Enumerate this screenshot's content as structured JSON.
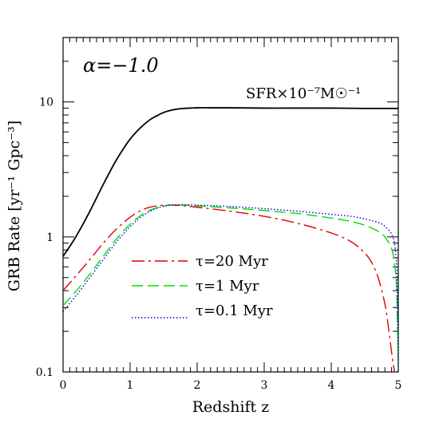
{
  "chart_data": {
    "type": "line",
    "xlabel": "Redshift z",
    "ylabel": "GRB Rate [yr⁻¹ Gpc⁻³]",
    "xlim": [
      0,
      5
    ],
    "ylim": [
      0.1,
      30
    ],
    "yscale": "log",
    "x_ticks": [
      "0",
      "1",
      "2",
      "3",
      "4",
      "5"
    ],
    "y_ticks": [
      "0.1",
      "1",
      "10"
    ],
    "annotation": "α=−1.0",
    "series": [
      {
        "name": "SFR×10⁻⁷M☉⁻¹",
        "color": "#000000",
        "style": "solid",
        "x": [
          0,
          0.1,
          0.2,
          0.3,
          0.4,
          0.5,
          0.6,
          0.7,
          0.8,
          0.9,
          1.0,
          1.1,
          1.2,
          1.3,
          1.4,
          1.5,
          1.6,
          1.7,
          1.8,
          1.9,
          2.0,
          2.2,
          2.5,
          3.0,
          3.5,
          4.0,
          4.5,
          5.0
        ],
        "y": [
          0.72,
          0.85,
          1.02,
          1.25,
          1.55,
          1.95,
          2.45,
          3.05,
          3.75,
          4.5,
          5.3,
          6.05,
          6.75,
          7.4,
          7.9,
          8.35,
          8.65,
          8.85,
          8.95,
          9.0,
          9.05,
          9.05,
          9.05,
          9.0,
          9.0,
          9.0,
          8.95,
          8.95
        ]
      },
      {
        "name": "τ=20 Myr",
        "color": "#dd0000",
        "style": "dashdot",
        "x": [
          0,
          0.2,
          0.4,
          0.6,
          0.8,
          1.0,
          1.2,
          1.4,
          1.6,
          1.8,
          2.0,
          2.5,
          3.0,
          3.5,
          4.0,
          4.3,
          4.5,
          4.6,
          4.7,
          4.8,
          4.85,
          4.9,
          4.95
        ],
        "y": [
          0.4,
          0.52,
          0.68,
          0.9,
          1.15,
          1.4,
          1.6,
          1.7,
          1.72,
          1.7,
          1.66,
          1.55,
          1.42,
          1.26,
          1.07,
          0.92,
          0.76,
          0.65,
          0.5,
          0.32,
          0.22,
          0.14,
          0.095
        ]
      },
      {
        "name": "τ=1 Myr",
        "color": "#00dd00",
        "style": "dashed",
        "x": [
          0,
          0.2,
          0.4,
          0.6,
          0.8,
          1.0,
          1.2,
          1.4,
          1.6,
          1.8,
          2.0,
          2.5,
          3.0,
          3.5,
          4.0,
          4.3,
          4.5,
          4.7,
          4.8,
          4.9,
          4.95,
          4.98,
          5.0
        ],
        "y": [
          0.31,
          0.4,
          0.53,
          0.72,
          0.97,
          1.24,
          1.49,
          1.65,
          1.72,
          1.72,
          1.7,
          1.64,
          1.57,
          1.49,
          1.38,
          1.3,
          1.22,
          1.1,
          1.0,
          0.82,
          0.6,
          0.35,
          0.1
        ]
      },
      {
        "name": "τ=0.1 Myr",
        "color": "#0000dd",
        "style": "dotted",
        "x": [
          0,
          0.2,
          0.4,
          0.6,
          0.8,
          1.0,
          1.2,
          1.4,
          1.6,
          1.8,
          2.0,
          2.5,
          3.0,
          3.5,
          4.0,
          4.3,
          4.5,
          4.7,
          4.8,
          4.9,
          4.95,
          4.98,
          5.0
        ],
        "y": [
          0.28,
          0.37,
          0.5,
          0.68,
          0.92,
          1.19,
          1.45,
          1.63,
          1.72,
          1.73,
          1.72,
          1.68,
          1.62,
          1.55,
          1.47,
          1.42,
          1.36,
          1.28,
          1.2,
          1.05,
          0.85,
          0.5,
          0.1
        ]
      }
    ],
    "legend_placement": "lower-center"
  }
}
